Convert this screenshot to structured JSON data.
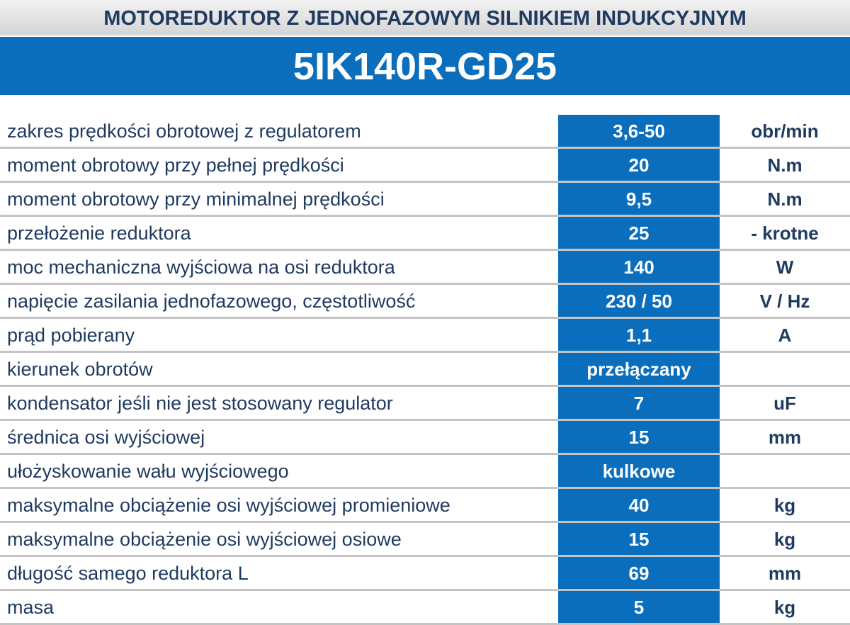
{
  "header": {
    "title": "MOTOREDUKTOR Z JEDNOFAZOWYM SILNIKIEM INDUKCYJNYM",
    "model": "5IK140R-GD25"
  },
  "table": {
    "rows": [
      {
        "label": "zakres prędkości obrotowej z regulatorem",
        "value": "3,6-50",
        "unit": "obr/min"
      },
      {
        "label": "moment obrotowy przy pełnej prędkości",
        "value": "20",
        "unit": "N.m"
      },
      {
        "label": "moment obrotowy przy minimalnej prędkości",
        "value": "9,5",
        "unit": "N.m"
      },
      {
        "label": "przełożenie reduktora",
        "value": "25",
        "unit": "- krotne"
      },
      {
        "label": "moc mechaniczna wyjściowa na osi reduktora",
        "value": "140",
        "unit": "W"
      },
      {
        "label": "napięcie zasilania jednofazowego, częstotliwość",
        "value": "230 / 50",
        "unit": "V / Hz"
      },
      {
        "label": "prąd pobierany",
        "value": "1,1",
        "unit": "A"
      },
      {
        "label": "kierunek obrotów",
        "value": "przełączany"
      },
      {
        "label": "kondensator jeśli nie jest stosowany regulator",
        "value": "7",
        "unit": "uF"
      },
      {
        "label": "średnica osi wyjściowej",
        "value": "15",
        "unit": "mm"
      },
      {
        "label": "ułożyskowanie wału wyjściowego",
        "value": "kulkowe"
      },
      {
        "label": "maksymalne obciążenie osi wyjściowej promieniowe",
        "value": "40",
        "unit": "kg"
      },
      {
        "label": "maksymalne obciążenie osi wyjściowej osiowe",
        "value": "15",
        "unit": "kg"
      },
      {
        "label": "długość samego reduktora L",
        "value": "69",
        "unit": "mm"
      },
      {
        "label": "masa",
        "value": "5",
        "unit": "kg"
      }
    ]
  }
}
